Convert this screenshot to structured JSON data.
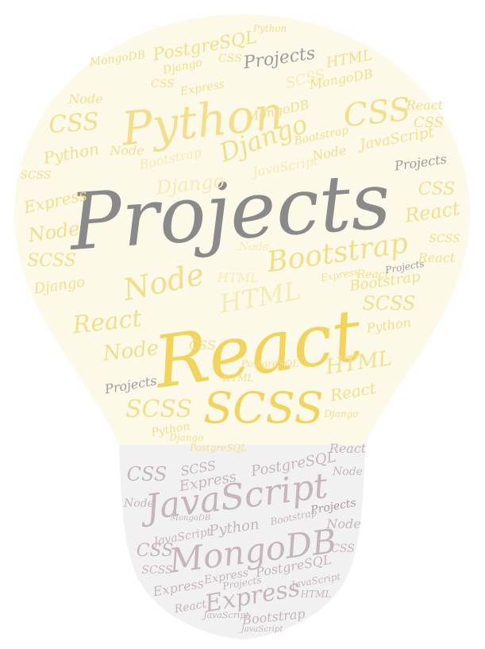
{
  "colors": {
    "bulb_fill": "#fdf9e8",
    "base_fill": "#f2f1f1",
    "title": "#8a8a8a",
    "yellow_strong": "#f2d35c",
    "yellow_mid": "#f3de8c",
    "yellow_light": "#f6eab6",
    "mauve": "#c6b6ba",
    "mauve_dark": "#a99a9e",
    "grey": "#9c9c9c"
  },
  "words": {
    "title": "Projects",
    "react_big": "React",
    "python_big": "Python",
    "scss_big": "SCSS",
    "javascript_big": "JavaScript",
    "mongodb_big": "MongoDB",
    "bootstrap_big": "Bootstrap",
    "node_big": "Node",
    "css_big": "CSS",
    "django_big": "Django",
    "html_big": "HTML",
    "express_big": "Express",
    "postgresql": "PostgreSQL",
    "mongodb": "MongoDB",
    "projects": "Projects",
    "python": "Python",
    "javascript": "JavaScript",
    "django": "Django",
    "node": "Node",
    "css": "CSS",
    "scss": "SCSS",
    "html": "HTML",
    "react": "React",
    "express": "Express",
    "bootstrap": "Bootstrap"
  }
}
